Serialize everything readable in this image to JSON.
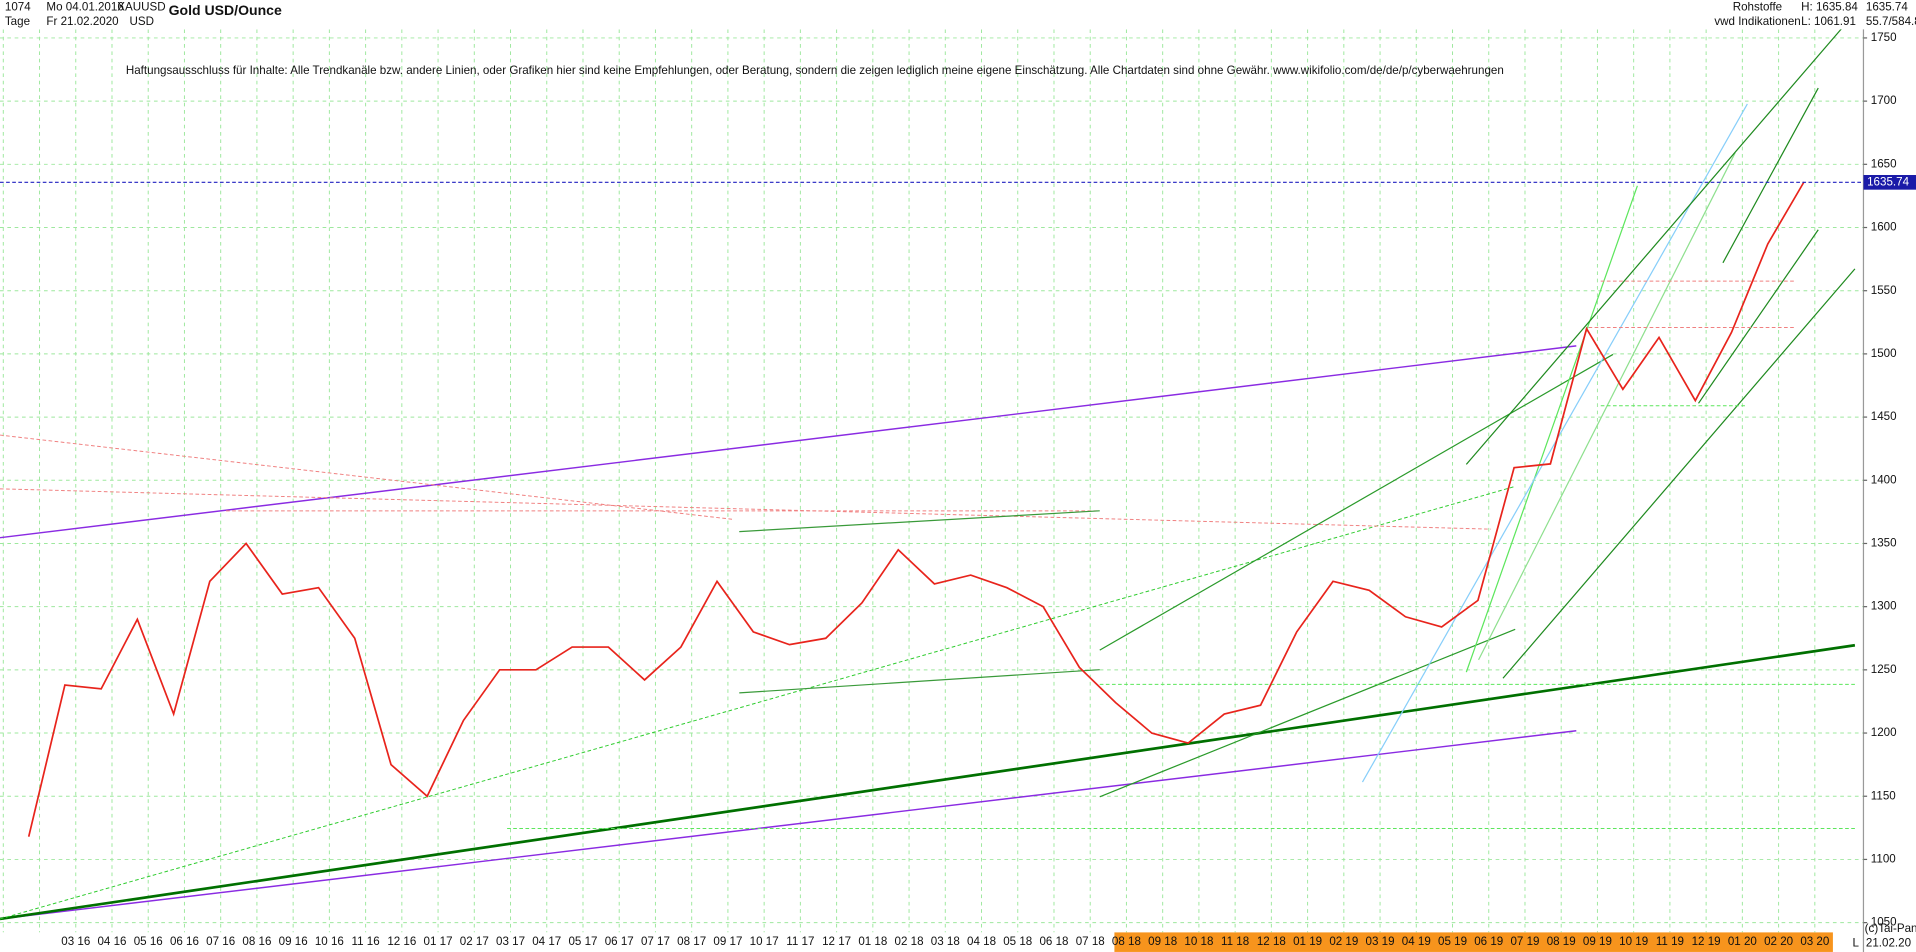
{
  "header": {
    "count": "1074",
    "start_date": "Mo 04.01.2016",
    "symbol": "XAUUSD",
    "period": "Tage",
    "end_date": "Fr 21.02.2020",
    "currency": "USD",
    "title": "Gold USD/Ounce",
    "group": "Rohstoffe",
    "high": "H: 1635.84",
    "source": "vwd Indikationen",
    "low": "L: 1061.91",
    "last": "1635.74",
    "ratio": "55.7/584.8",
    "disclaimer": "Haftungsausschluss für Inhalte: Alle Trendkanäle bzw. andere Linien, oder Grafiken hier sind keine Empfehlungen, oder Beratung, sondern die zeigen lediglich meine eigene Einschätzung. Alle Chartdaten sind ohne Gewähr.  www.wikifolio.com/de/de/p/cyberwaehrungen",
    "copyright": "(c)Tai-Pan",
    "scale_mode": "L",
    "footer_date": "21.02.20"
  },
  "chart_data": {
    "type": "line",
    "categories": [
      null,
      null,
      "03 16",
      "04 16",
      "05 16",
      "06 16",
      "07 16",
      "08 16",
      "09 16",
      "10 16",
      "11 16",
      "12 16",
      "01 17",
      "02 17",
      "03 17",
      "04 17",
      "05 17",
      "06 17",
      "07 17",
      "08 17",
      "09 17",
      "10 17",
      "11 17",
      "12 17",
      "01 18",
      "02 18",
      "03 18",
      "04 18",
      "05 18",
      "06 18",
      "07 18",
      "08 18",
      "09 18",
      "10 18",
      "11 18",
      "12 18",
      "01 19",
      "02 19",
      "03 19",
      "04 19",
      "05 19",
      "06 19",
      "07 19",
      "08 19",
      "09 19",
      "10 19",
      "11 19",
      "12 19",
      "01 20",
      "02 20",
      "03 20"
    ],
    "series": [
      {
        "name": "XAUUSD",
        "color": "#e8241c",
        "values": [
          1118,
          1238,
          1235,
          1290,
          1215,
          1320,
          1350,
          1310,
          1315,
          1275,
          1175,
          1150,
          1210,
          1250,
          1250,
          1268,
          1268,
          1242,
          1268,
          1320,
          1280,
          1270,
          1275,
          1303,
          1345,
          1318,
          1325,
          1315,
          1300,
          1252,
          1224,
          1200,
          1192,
          1215,
          1222,
          1280,
          1320,
          1313,
          1292,
          1284,
          1305,
          1410,
          1413,
          1520,
          1472,
          1513,
          1463,
          1517,
          1587,
          1636,
          null
        ]
      }
    ],
    "current_price": 1635.74,
    "ylim": [
      1050,
      1750
    ],
    "yticks": [
      1050,
      1100,
      1150,
      1200,
      1250,
      1300,
      1350,
      1400,
      1450,
      1500,
      1550,
      1600,
      1650,
      1700,
      1750
    ],
    "grid": true
  }
}
